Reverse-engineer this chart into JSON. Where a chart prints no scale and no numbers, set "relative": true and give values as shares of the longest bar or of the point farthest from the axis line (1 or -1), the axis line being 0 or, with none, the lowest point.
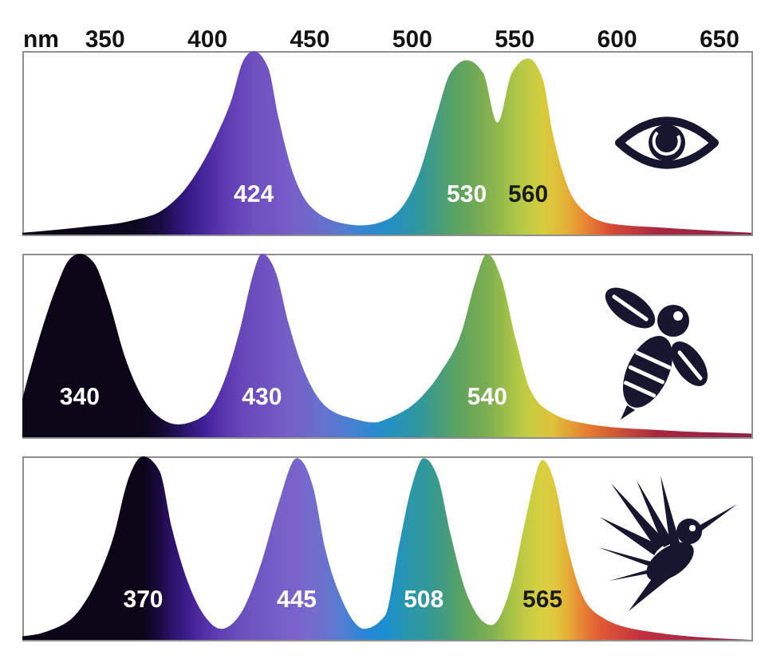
{
  "chart_data": [
    {
      "type": "area",
      "relative": true,
      "xlabel": "nm",
      "xlim": [
        310,
        666
      ],
      "xticks": [
        350,
        400,
        450,
        500,
        550,
        600,
        650
      ],
      "tick_labels": "x",
      "series": [
        {
          "x": [
            310,
            339,
            365,
            378,
            391,
            404,
            412,
            418,
            423,
            430,
            435,
            442,
            451,
            467,
            476,
            488,
            504,
            512,
            519,
            527,
            535,
            542,
            549,
            557,
            564,
            569,
            576,
            584,
            597,
            619,
            666
          ],
          "values": [
            0.01,
            0.04,
            0.08,
            0.13,
            0.27,
            0.52,
            0.73,
            0.95,
            1,
            0.91,
            0.64,
            0.34,
            0.15,
            0.06,
            0.05,
            0.08,
            0.34,
            0.64,
            0.88,
            0.95,
            0.88,
            0.61,
            0.88,
            0.96,
            0.85,
            0.55,
            0.27,
            0.13,
            0.06,
            0.04,
            0.01
          ],
          "colors": [
            "#0a0618",
            "#0a0618",
            "#0c0820",
            "#1a0c44",
            "#361a88",
            "#5230a8",
            "#6040b4",
            "#6848bc",
            "#6e50c0",
            "#7254c2",
            "#7458c4",
            "#7660c8",
            "#7068ca",
            "#567cd0",
            "#3486d2",
            "#248ec8",
            "#30989c",
            "#449c80",
            "#54a06a",
            "#66a65a",
            "#7cae52",
            "#90b84c",
            "#a8c448",
            "#c0cc44",
            "#d6cc3c",
            "#dec43a",
            "#e4b038",
            "#e88a32",
            "#d84c34",
            "#aa2840",
            "#8c2048"
          ]
        }
      ],
      "annotations": [
        "424",
        "530",
        "560"
      ]
    },
    {
      "type": "area",
      "relative": true,
      "xlim": [
        310,
        666
      ],
      "tick_labels": false,
      "series": [
        {
          "x": [
            310,
            318,
            326,
            333,
            338,
            345,
            352,
            360,
            369,
            378,
            386,
            399,
            409,
            417,
            422,
            427,
            434,
            440,
            448,
            458,
            472,
            482,
            488,
            504,
            514,
            525,
            531,
            537,
            544,
            551,
            558,
            569,
            587,
            619,
            666
          ],
          "values": [
            0.21,
            0.53,
            0.8,
            0.97,
            1,
            0.95,
            0.75,
            0.44,
            0.21,
            0.1,
            0.07,
            0.12,
            0.32,
            0.62,
            0.86,
            1,
            0.89,
            0.62,
            0.35,
            0.17,
            0.1,
            0.08,
            0.1,
            0.21,
            0.35,
            0.59,
            0.84,
            1,
            0.86,
            0.53,
            0.26,
            0.13,
            0.07,
            0.04,
            0.02
          ],
          "colors": [
            "#0a0618",
            "#0a0618",
            "#0a0618",
            "#0a0618",
            "#0a0618",
            "#0a0618",
            "#0a0618",
            "#0a0618",
            "#0a0618",
            "#120a30",
            "#241058",
            "#40209a",
            "#5a38b0",
            "#6646b8",
            "#6a4cbc",
            "#6e50c0",
            "#7258c4",
            "#7460c6",
            "#7066ca",
            "#6474ce",
            "#4482d4",
            "#2a8ad2",
            "#2490c4",
            "#30989c",
            "#489e7a",
            "#62a45c",
            "#70aa56",
            "#7cae52",
            "#94ba4a",
            "#b0c846",
            "#c8cc42",
            "#e0c23a",
            "#e6782f",
            "#aa2840",
            "#8c2048"
          ]
        }
      ],
      "annotations": [
        "340",
        "430",
        "540"
      ]
    },
    {
      "type": "area",
      "relative": true,
      "xlim": [
        310,
        666
      ],
      "tick_labels": false,
      "series": [
        {
          "x": [
            310,
            323,
            337,
            347,
            355,
            361,
            369,
            377,
            383,
            391,
            399,
            407,
            417,
            427,
            435,
            444,
            452,
            458,
            466,
            477,
            487,
            494,
            500,
            506,
            513,
            519,
            527,
            539,
            549,
            556,
            564,
            570,
            576,
            582,
            592,
            613,
            666
          ],
          "values": [
            0.02,
            0.05,
            0.15,
            0.34,
            0.58,
            0.85,
            1,
            0.92,
            0.61,
            0.31,
            0.13,
            0.06,
            0.15,
            0.43,
            0.74,
            0.99,
            0.83,
            0.49,
            0.22,
            0.06,
            0.13,
            0.52,
            0.83,
            0.99,
            0.88,
            0.58,
            0.25,
            0.08,
            0.31,
            0.67,
            0.98,
            0.85,
            0.52,
            0.28,
            0.13,
            0.05,
            0
          ],
          "colors": [
            "#0a0618",
            "#0a0618",
            "#0a0618",
            "#0a0618",
            "#0a0618",
            "#0a0618",
            "#0a0618",
            "#1a0a40",
            "#2c1268",
            "#3e1e90",
            "#5430a8",
            "#6040b4",
            "#6a50bc",
            "#7058c4",
            "#7660c8",
            "#7a64cc",
            "#746ccc",
            "#6a72ce",
            "#527ed2",
            "#2a86d8",
            "#1a8ed0",
            "#2294bc",
            "#2a98a8",
            "#30989c",
            "#3c9a88",
            "#4a9e74",
            "#60a45e",
            "#80b050",
            "#a8c448",
            "#c4cc42",
            "#d8d040",
            "#e0c83c",
            "#e6b038",
            "#e88a34",
            "#e05a34",
            "#c03040",
            "#8c2048"
          ]
        }
      ],
      "annotations": [
        "370",
        "445",
        "508",
        "565"
      ]
    }
  ]
}
